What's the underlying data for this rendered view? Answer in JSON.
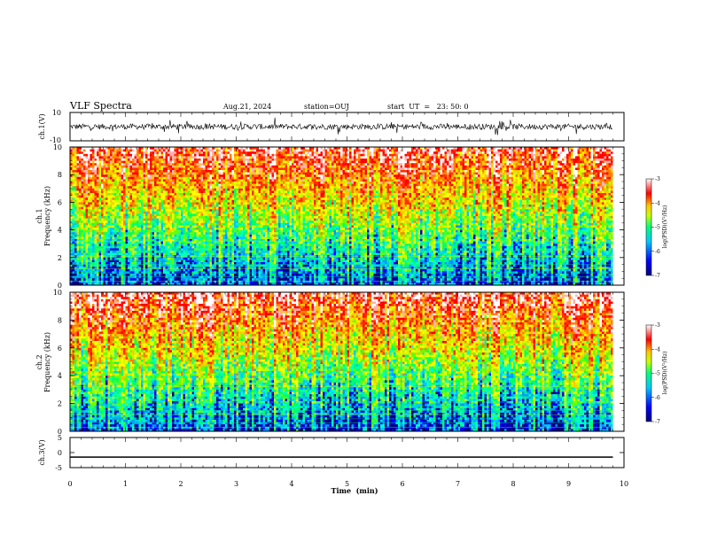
{
  "header": {
    "title": "VLF Spectra",
    "date": "Aug.21, 2024",
    "station": "station=OUJ",
    "start": "start  UT  =   23: 50: 0"
  },
  "chart_data": [
    {
      "type": "line",
      "panel": "ch1-waveform",
      "ylabel": "ch.1(V)",
      "ylim": [
        -10,
        10
      ],
      "yticks": [
        "10",
        "-10"
      ],
      "xlim": [
        0,
        10
      ],
      "description_values": {
        "mean": 0,
        "typical_amplitude": 3
      }
    },
    {
      "type": "heatmap",
      "panel": "ch1-spectrogram",
      "ylabel": "ch.1\nFrequency (kHz)",
      "ylabel_line1": "ch.1",
      "ylabel_line2": "Frequency (kHz)",
      "ylim": [
        0,
        10
      ],
      "yticks": [
        "0",
        "2",
        "4",
        "6",
        "8",
        "10"
      ],
      "xlim": [
        0,
        10
      ],
      "colorbar": {
        "label": "log(PSD)(V²/Hz)",
        "range": [
          -7,
          -3
        ],
        "ticks": [
          "-3",
          "-4",
          "-5",
          "-6",
          "-7"
        ],
        "colors": [
          "#000080",
          "#0000ff",
          "#00c8ff",
          "#00ff80",
          "#c8ff00",
          "#ffc800",
          "#ff0000",
          "#ffffff"
        ]
      }
    },
    {
      "type": "heatmap",
      "panel": "ch2-spectrogram",
      "ylabel_line1": "ch.2",
      "ylabel_line2": "Frequency (kHz)",
      "ylim": [
        0,
        10
      ],
      "yticks": [
        "0",
        "2",
        "4",
        "6",
        "8",
        "10"
      ],
      "xlim": [
        0,
        10
      ],
      "colorbar": {
        "label": "log(PSD)(V²/Hz)",
        "range": [
          -7,
          -3
        ],
        "ticks": [
          "-3",
          "-4",
          "-5",
          "-6",
          "-7"
        ]
      }
    },
    {
      "type": "line",
      "panel": "ch3-waveform",
      "ylabel": "ch.3(V)",
      "ylim": [
        -5,
        5
      ],
      "yticks": [
        "5",
        "0",
        "-5"
      ],
      "x": [
        0,
        9.8
      ],
      "y": [
        -1.5,
        -1.5
      ],
      "xlim": [
        0,
        10
      ]
    }
  ],
  "xaxis": {
    "label": "Time  (min)",
    "ticks": [
      "0",
      "1",
      "2",
      "3",
      "4",
      "5",
      "6",
      "7",
      "8",
      "9",
      "10"
    ]
  }
}
